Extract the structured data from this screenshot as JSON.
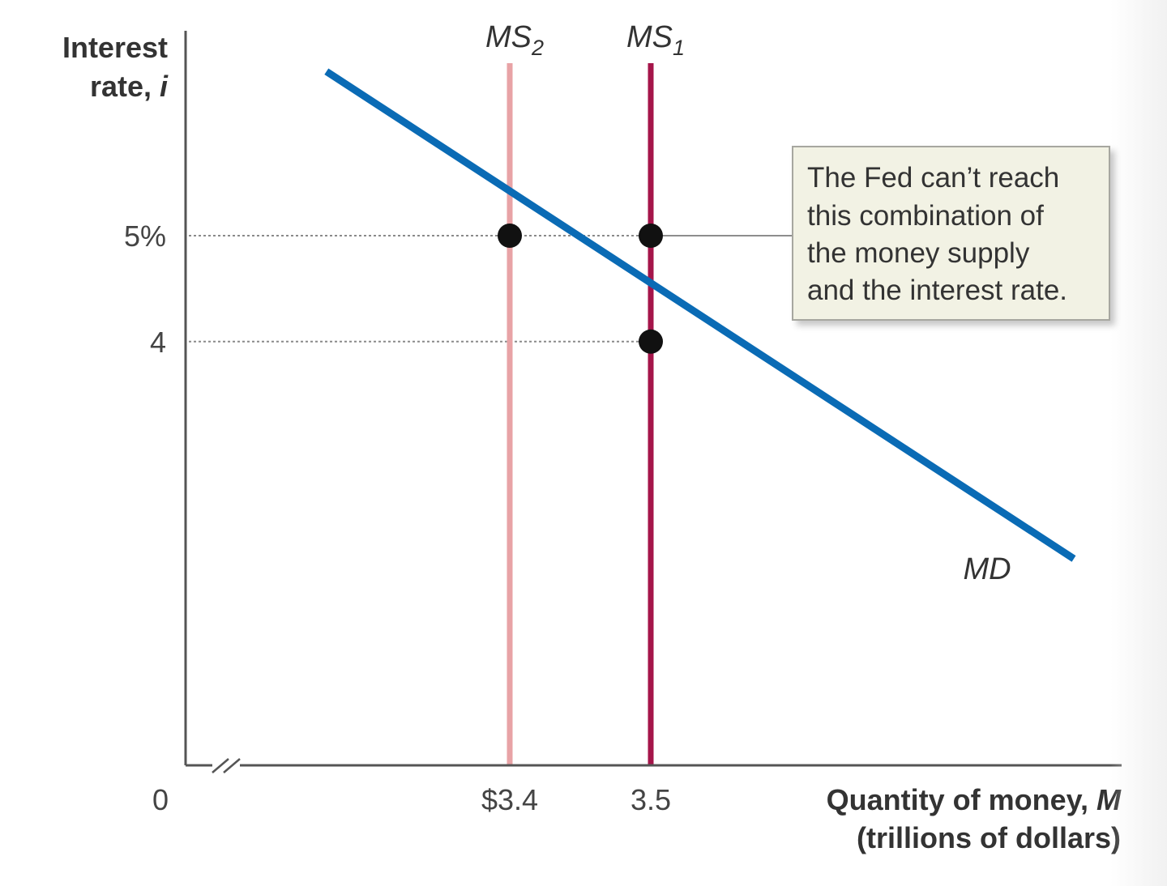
{
  "chart_data": {
    "type": "line",
    "title": "",
    "ylabel": [
      "Interest",
      "rate, "
    ],
    "ylabel_var": "i",
    "xlabel": [
      "Quantity of money, ",
      "(trillions of dollars)"
    ],
    "xlabel_var": "M",
    "origin_label": "0",
    "axis_break": true,
    "ylim": [
      0,
      7.0
    ],
    "xlim_shown": [
      3.14,
      3.8
    ],
    "y_ticks": [
      {
        "value": 5,
        "label": "5%"
      },
      {
        "value": 4,
        "label": "4"
      }
    ],
    "x_ticks": [
      {
        "value": 3.4,
        "label": "$3.4"
      },
      {
        "value": 3.5,
        "label": "3.5"
      }
    ],
    "series": [
      {
        "name": "MD",
        "kind": "demand",
        "color": "#0a6bb5",
        "points": [
          [
            3.27,
            6.55
          ],
          [
            3.8,
            1.95
          ]
        ]
      },
      {
        "name_main": "MS",
        "name_sub": "2",
        "kind": "supply",
        "color": "#e8a3a6",
        "x": 3.4
      },
      {
        "name_main": "MS",
        "name_sub": "1",
        "kind": "supply",
        "color": "#a5154a",
        "x": 3.5
      }
    ],
    "points": [
      {
        "x": 3.4,
        "y": 5
      },
      {
        "x": 3.5,
        "y": 5
      },
      {
        "x": 3.5,
        "y": 4
      }
    ],
    "reference_lines": [
      {
        "y": 5,
        "x_to": 3.5
      },
      {
        "y": 4,
        "x_to": 3.5
      }
    ],
    "annotation": {
      "lines": [
        "The Fed can’t reach",
        "this combination of",
        "the money supply",
        "and the interest rate."
      ],
      "points_to": {
        "x": 3.5,
        "y": 5
      },
      "bg": "#f2f2e4",
      "border": "#a7a7a0"
    },
    "grid": false,
    "legend": "none"
  }
}
